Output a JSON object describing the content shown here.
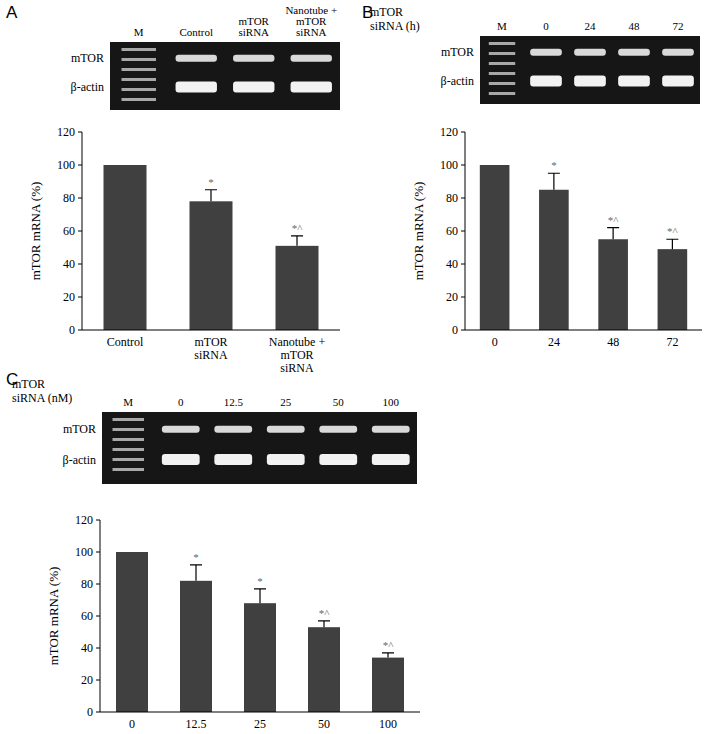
{
  "chart_data": [
    {
      "panel": "A",
      "type": "bar",
      "y_label": "mTOR mRNA (%)",
      "categories": [
        "Control",
        "mTOR siRNA",
        "Nanotube + mTOR siRNA"
      ],
      "values": [
        100,
        78,
        51
      ],
      "errors": [
        null,
        7,
        6
      ],
      "annotations": [
        null,
        "*",
        "*^"
      ],
      "color": "#404040",
      "ylim": [
        0,
        120
      ],
      "yticks": [
        0,
        20,
        40,
        60,
        80,
        100,
        120
      ],
      "gel": {
        "lanes": [
          "M",
          "Control",
          "mTOR siRNA",
          "Nanotube + mTOR siRNA"
        ],
        "rows": [
          "mTOR",
          "β-actin"
        ]
      }
    },
    {
      "panel": "B",
      "type": "bar",
      "y_label": "mTOR mRNA (%)",
      "categories": [
        "0",
        "24",
        "48",
        "72"
      ],
      "values": [
        100,
        85,
        55,
        49
      ],
      "errors": [
        null,
        10,
        7,
        6
      ],
      "annotations": [
        null,
        "*",
        "*^",
        "*^"
      ],
      "color": "#404040",
      "ylim": [
        0,
        120
      ],
      "yticks": [
        0,
        20,
        40,
        60,
        80,
        100,
        120
      ],
      "gel": {
        "header": "mTOR siRNA (h)",
        "lanes": [
          "M",
          "0",
          "24",
          "48",
          "72"
        ],
        "rows": [
          "mTOR",
          "β-actin"
        ]
      }
    },
    {
      "panel": "C",
      "type": "bar",
      "y_label": "mTOR mRNA (%)",
      "categories": [
        "0",
        "12.5",
        "25",
        "50",
        "100"
      ],
      "values": [
        100,
        82,
        68,
        53,
        34
      ],
      "errors": [
        null,
        10,
        9,
        4,
        3
      ],
      "annotations": [
        null,
        "*",
        "*",
        "*^",
        "*^"
      ],
      "color": "#404040",
      "ylim": [
        0,
        120
      ],
      "yticks": [
        0,
        20,
        40,
        60,
        80,
        100,
        120
      ],
      "gel": {
        "header": "mTOR siRNA (nM)",
        "lanes": [
          "M",
          "0",
          "12.5",
          "25",
          "50",
          "100"
        ],
        "rows": [
          "mTOR",
          "β-actin"
        ]
      }
    }
  ]
}
